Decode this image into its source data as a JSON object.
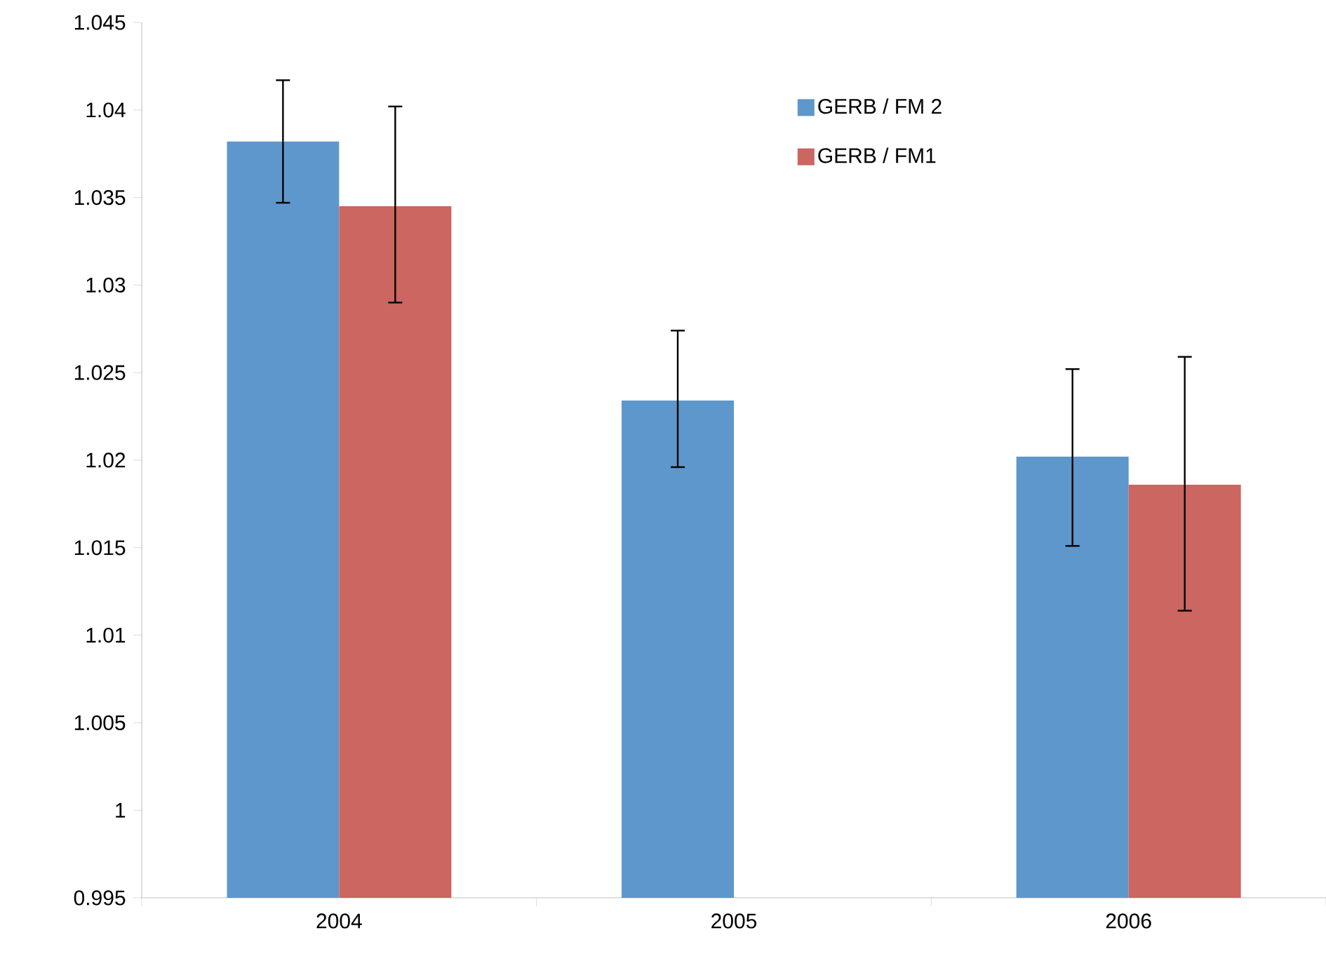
{
  "chart_data": {
    "type": "bar",
    "categories": [
      "2004",
      "2005",
      "2006"
    ],
    "series": [
      {
        "name": "GERB / FM 2",
        "color": "#5e97cb",
        "values": [
          1.0382,
          1.0234,
          1.0202
        ],
        "errors": [
          [
            1.0347,
            1.0417
          ],
          [
            1.0196,
            1.0274
          ],
          [
            1.0151,
            1.0252
          ]
        ]
      },
      {
        "name": "GERB / FM1",
        "color": "#cb6660",
        "values": [
          1.0345,
          null,
          1.0186
        ],
        "errors": [
          [
            1.029,
            1.0402
          ],
          null,
          [
            1.0114,
            1.0259
          ]
        ]
      }
    ],
    "ylim": [
      0.995,
      1.045
    ],
    "yticks": [
      0.995,
      1,
      1.005,
      1.01,
      1.015,
      1.02,
      1.025,
      1.03,
      1.035,
      1.04,
      1.045
    ],
    "grid": false,
    "legend": "top right"
  }
}
